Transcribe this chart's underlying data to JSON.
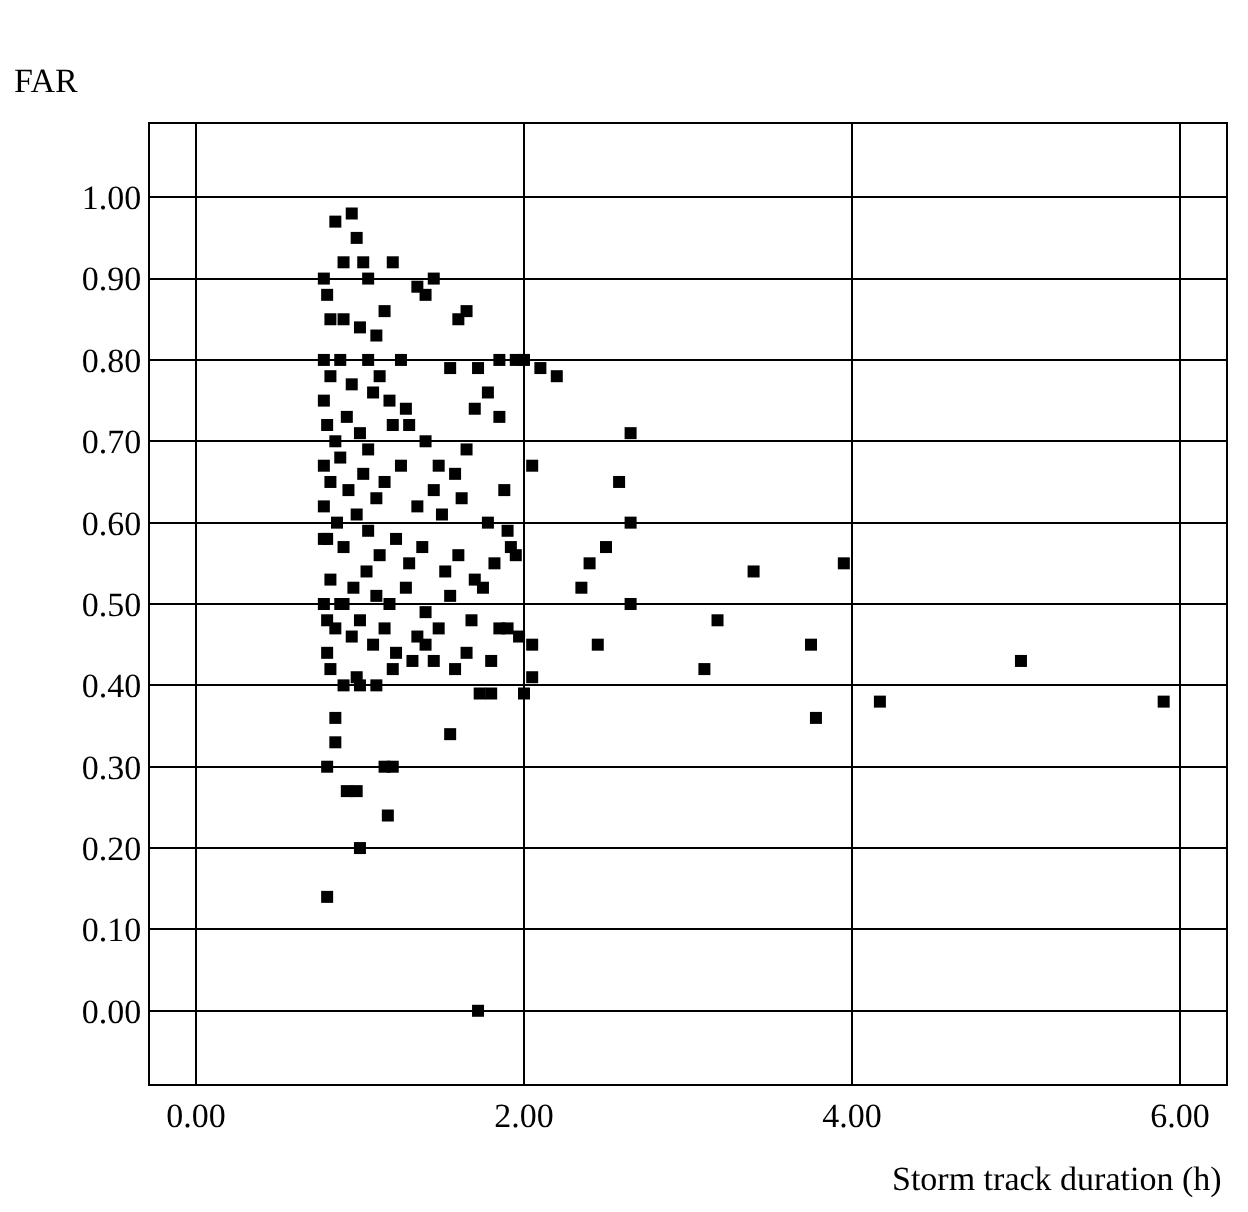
{
  "chart_data": {
    "type": "scatter",
    "xlabel": "Storm track duration (h)",
    "ylabel": "FAR",
    "x": [
      5.9,
      5.03,
      4.17,
      3.95,
      3.75,
      3.78,
      3.4,
      3.18,
      3.1,
      2.65,
      2.65,
      2.65,
      2.58,
      2.5,
      2.4,
      2.45,
      2.35,
      2.2,
      2.1,
      2.05,
      2.0,
      2.05,
      2.05,
      2.0,
      1.97,
      1.95,
      1.9,
      1.85,
      1.9,
      1.72,
      1.73,
      1.8,
      1.55,
      1.15,
      1.2,
      1.17,
      1.0,
      0.8,
      0.8,
      0.85,
      0.92,
      0.98,
      0.85,
      0.85,
      0.95,
      0.98,
      1.02,
      0.9,
      1.05,
      1.2,
      1.35,
      1.45,
      1.4,
      1.6,
      1.65,
      0.78,
      0.8,
      0.82,
      0.9,
      1.0,
      1.05,
      1.1,
      1.15,
      1.25,
      0.78,
      0.82,
      0.88,
      0.95,
      1.08,
      1.12,
      1.18,
      1.3,
      1.55,
      1.72,
      1.78,
      1.95,
      1.85,
      0.78,
      0.8,
      0.85,
      0.92,
      1.0,
      1.05,
      1.2,
      1.28,
      1.4,
      1.48,
      1.65,
      1.7,
      1.58,
      0.78,
      0.82,
      0.88,
      0.93,
      1.02,
      1.1,
      1.15,
      1.25,
      1.35,
      1.45,
      1.5,
      1.62,
      1.78,
      1.88,
      0.78,
      0.8,
      0.86,
      0.9,
      0.98,
      1.05,
      1.12,
      1.22,
      1.3,
      1.38,
      1.52,
      1.6,
      1.7,
      1.82,
      1.92,
      0.78,
      0.82,
      0.88,
      0.96,
      1.04,
      1.1,
      1.18,
      1.28,
      1.4,
      1.55,
      1.68,
      1.75,
      1.85,
      0.78,
      0.8,
      0.85,
      0.9,
      0.95,
      1.0,
      1.08,
      1.15,
      1.22,
      1.35,
      1.45,
      1.58,
      1.65,
      1.8,
      0.82,
      0.9,
      0.98,
      1.1,
      1.2,
      1.32,
      0.8,
      1.0,
      1.4,
      1.48
    ],
    "values": [
      0.38,
      0.43,
      0.38,
      0.55,
      0.45,
      0.36,
      0.54,
      0.48,
      0.42,
      0.71,
      0.6,
      0.5,
      0.65,
      0.57,
      0.55,
      0.45,
      0.52,
      0.78,
      0.79,
      0.67,
      0.8,
      0.45,
      0.41,
      0.39,
      0.46,
      0.56,
      0.59,
      0.8,
      0.47,
      0.0,
      0.39,
      0.39,
      0.34,
      0.3,
      0.3,
      0.24,
      0.2,
      0.14,
      0.3,
      0.33,
      0.27,
      0.27,
      0.36,
      0.97,
      0.98,
      0.95,
      0.92,
      0.92,
      0.9,
      0.92,
      0.89,
      0.9,
      0.88,
      0.85,
      0.86,
      0.9,
      0.88,
      0.85,
      0.85,
      0.84,
      0.8,
      0.83,
      0.86,
      0.8,
      0.8,
      0.78,
      0.8,
      0.77,
      0.76,
      0.78,
      0.75,
      0.72,
      0.79,
      0.79,
      0.76,
      0.8,
      0.73,
      0.75,
      0.72,
      0.7,
      0.73,
      0.71,
      0.69,
      0.72,
      0.74,
      0.7,
      0.67,
      0.69,
      0.74,
      0.66,
      0.67,
      0.65,
      0.68,
      0.64,
      0.66,
      0.63,
      0.65,
      0.67,
      0.62,
      0.64,
      0.61,
      0.63,
      0.6,
      0.64,
      0.62,
      0.58,
      0.6,
      0.57,
      0.61,
      0.59,
      0.56,
      0.58,
      0.55,
      0.57,
      0.54,
      0.56,
      0.53,
      0.55,
      0.57,
      0.58,
      0.53,
      0.5,
      0.52,
      0.54,
      0.51,
      0.5,
      0.52,
      0.49,
      0.51,
      0.48,
      0.52,
      0.47,
      0.5,
      0.48,
      0.47,
      0.5,
      0.46,
      0.48,
      0.45,
      0.47,
      0.44,
      0.46,
      0.43,
      0.42,
      0.44,
      0.43,
      0.42,
      0.4,
      0.41,
      0.4,
      0.42,
      0.43,
      0.44,
      0.4,
      0.45,
      0.47
    ],
    "color": "#000000",
    "marker": "square",
    "grid": true,
    "xlim": [
      -0.28,
      6.28
    ],
    "ylim": [
      -0.09,
      1.09
    ],
    "xticks": [
      {
        "value": 0,
        "label": "0.00"
      },
      {
        "value": 2,
        "label": "2.00"
      },
      {
        "value": 4,
        "label": "4.00"
      },
      {
        "value": 6,
        "label": "6.00"
      }
    ],
    "yticks": [
      {
        "value": 0,
        "label": "0.00"
      },
      {
        "value": 0.1,
        "label": "0.10"
      },
      {
        "value": 0.2,
        "label": "0.20"
      },
      {
        "value": 0.3,
        "label": "0.30"
      },
      {
        "value": 0.4,
        "label": "0.40"
      },
      {
        "value": 0.5,
        "label": "0.50"
      },
      {
        "value": 0.6,
        "label": "0.60"
      },
      {
        "value": 0.7,
        "label": "0.70"
      },
      {
        "value": 0.8,
        "label": "0.80"
      },
      {
        "value": 0.9,
        "label": "0.90"
      },
      {
        "value": 1.0,
        "label": "1.00"
      }
    ]
  }
}
